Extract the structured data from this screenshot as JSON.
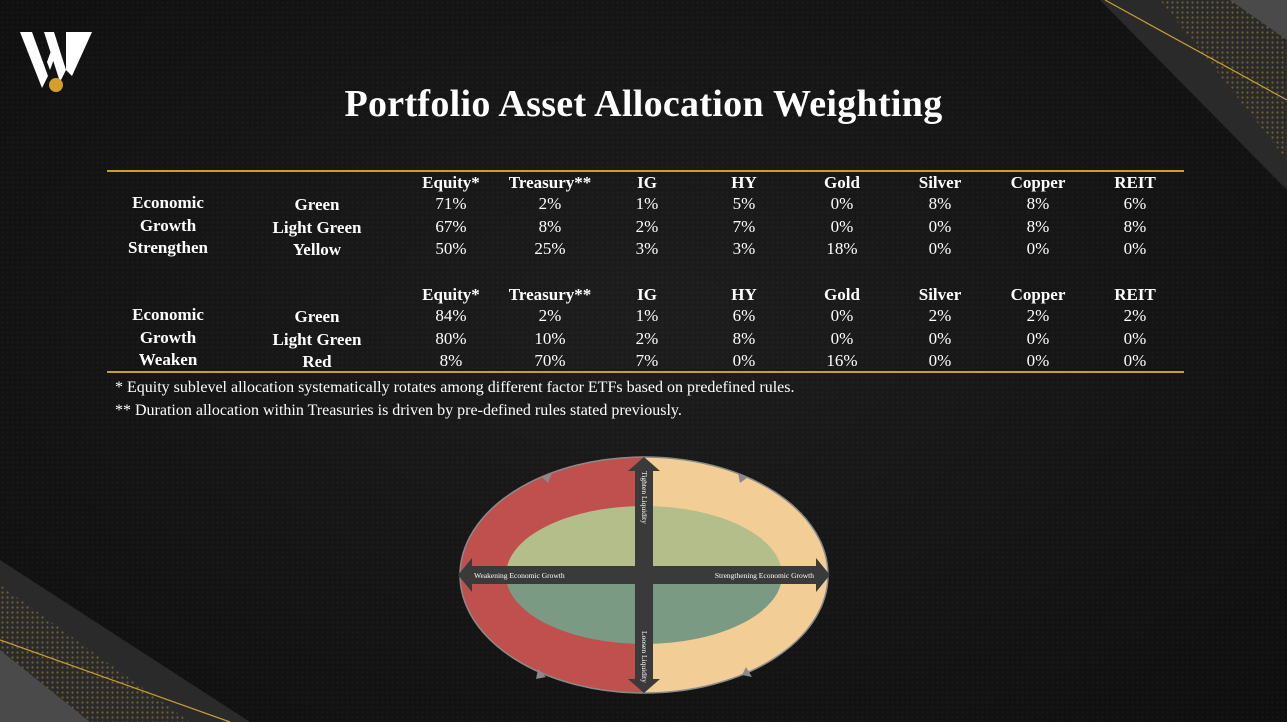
{
  "title": "Portfolio Asset Allocation Weighting",
  "columns": [
    "Equity*",
    "Treasury**",
    "IG",
    "HY",
    "Gold",
    "Silver",
    "Copper",
    "REIT"
  ],
  "sections": [
    {
      "regime": [
        "Economic",
        "Growth",
        "Strengthen"
      ],
      "rows": [
        {
          "signal": "Green",
          "values": [
            "71%",
            "2%",
            "1%",
            "5%",
            "0%",
            "8%",
            "8%",
            "6%"
          ]
        },
        {
          "signal": "Light Green",
          "values": [
            "67%",
            "8%",
            "2%",
            "7%",
            "0%",
            "0%",
            "8%",
            "8%"
          ]
        },
        {
          "signal": "Yellow",
          "values": [
            "50%",
            "25%",
            "3%",
            "3%",
            "18%",
            "0%",
            "0%",
            "0%"
          ]
        }
      ]
    },
    {
      "regime": [
        "Economic",
        "Growth",
        "Weaken"
      ],
      "rows": [
        {
          "signal": "Green",
          "values": [
            "84%",
            "2%",
            "1%",
            "6%",
            "0%",
            "2%",
            "2%",
            "2%"
          ]
        },
        {
          "signal": "Light Green",
          "values": [
            "80%",
            "10%",
            "2%",
            "8%",
            "0%",
            "0%",
            "0%",
            "0%"
          ]
        },
        {
          "signal": "Red",
          "values": [
            "8%",
            "70%",
            "7%",
            "0%",
            "16%",
            "0%",
            "0%",
            "0%"
          ]
        }
      ]
    }
  ],
  "footnotes": [
    "* Equity sublevel allocation systematically rotates among different factor ETFs based on predefined rules.",
    "** Duration allocation within Treasuries is driven by pre-defined rules stated previously."
  ],
  "diagram": {
    "top_label": "Tighten Liquidity",
    "bottom_label": "Loosen Liquidity",
    "left_label": "Weakening Economic Growth",
    "right_label": "Strengthening Economic Growth",
    "colors": {
      "left_ring": "#c0504d",
      "right_ring": "#f2cd96",
      "inner_top": "#b3be8a",
      "inner_bottom": "#7a9a84",
      "axis": "#3a3a3a",
      "accent_gold": "#c9a030"
    }
  },
  "brand_logo": "w-monogram-logo"
}
